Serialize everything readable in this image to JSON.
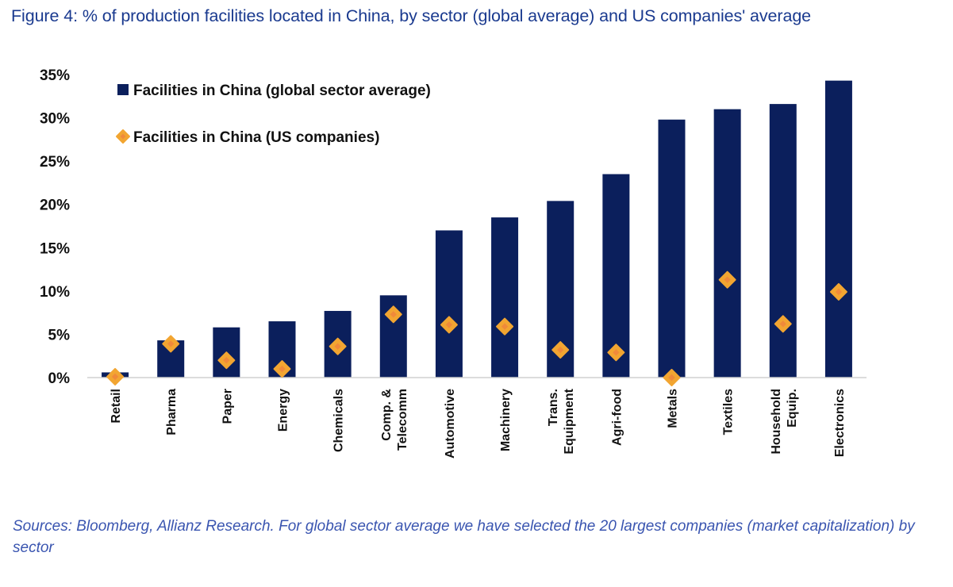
{
  "title": "Figure 4: % of production facilities located in China, by sector (global average) and US companies' average",
  "source": "Sources: Bloomberg, Allianz Research. For global sector average we have selected the 20 largest companies (market capitalization) by sector",
  "colors": {
    "bar": "#0b1f5c",
    "marker": "#f2a531",
    "marker_inner": "#f08a3a",
    "title": "#1a3a8f",
    "source": "#3a55b0"
  },
  "chart_data": {
    "type": "bar",
    "categories": [
      [
        "Retail"
      ],
      [
        "Pharma"
      ],
      [
        "Paper"
      ],
      [
        "Energy"
      ],
      [
        "Chemicals"
      ],
      [
        "Comp. &",
        "Telecomm"
      ],
      [
        "Automotive"
      ],
      [
        "Machinery"
      ],
      [
        "Trans.",
        "Equipment"
      ],
      [
        "Agri-food"
      ],
      [
        "Metals"
      ],
      [
        "Textiles"
      ],
      [
        "Household",
        "Equip."
      ],
      [
        "Electronics"
      ]
    ],
    "series": [
      {
        "name": "Facilities in China (global sector average)",
        "type": "bar",
        "values": [
          0.6,
          4.3,
          5.8,
          6.5,
          7.7,
          9.5,
          17.0,
          18.5,
          20.4,
          23.5,
          29.8,
          31.0,
          31.6,
          34.3
        ]
      },
      {
        "name": "Facilities in China (US companies)",
        "type": "scatter",
        "marker": "diamond",
        "values": [
          0.1,
          3.9,
          2.0,
          1.0,
          3.6,
          7.3,
          6.1,
          5.9,
          3.2,
          2.9,
          0.0,
          11.3,
          6.2,
          9.9
        ]
      }
    ],
    "yticks": [
      "0%",
      "5%",
      "10%",
      "15%",
      "20%",
      "25%",
      "30%",
      "35%"
    ],
    "ylim": [
      0,
      35
    ],
    "legend_position": "top-left",
    "grid": false
  }
}
